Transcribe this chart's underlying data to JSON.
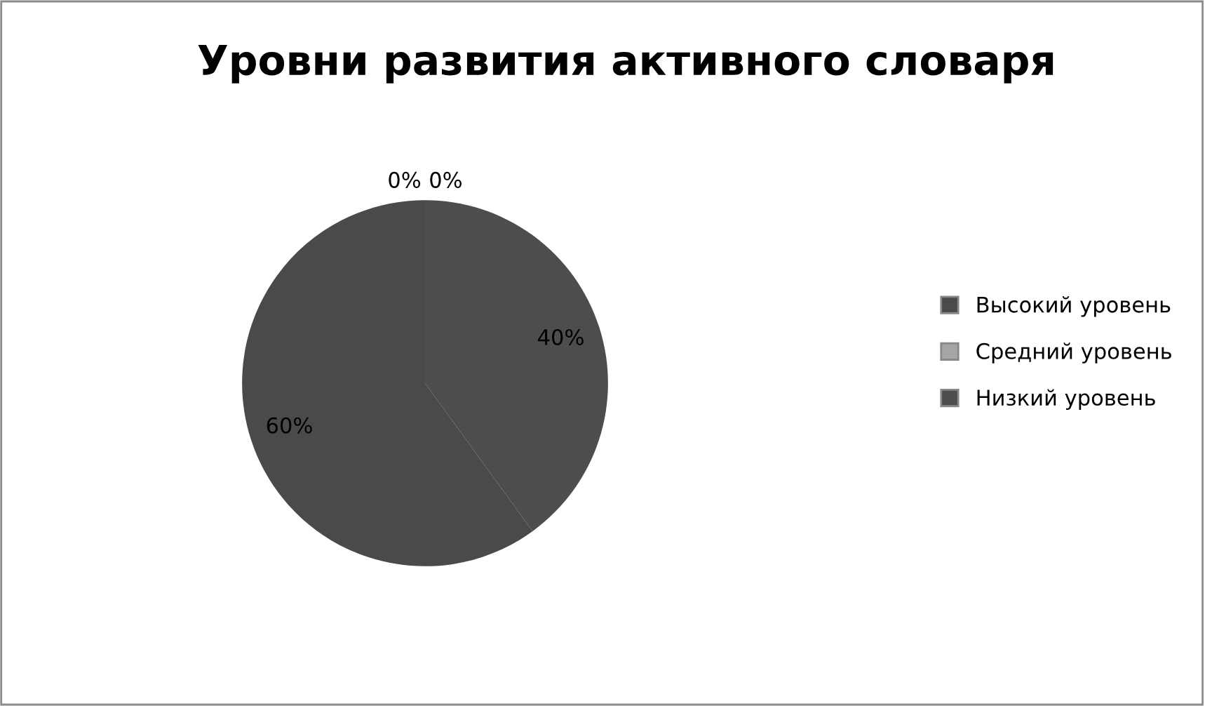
{
  "chart_data": {
    "type": "pie",
    "title": "Уровни развития активного словаря",
    "categories": [
      "Высокий уровень",
      "Средний уровень",
      "Низкий уровень",
      null
    ],
    "values": [
      0,
      0,
      40,
      60
    ],
    "colors": [
      "#4a4a4a",
      "#a6a6a6",
      "#4d4d4d",
      "#4a4a4a"
    ],
    "value_labels": [
      "0%",
      "0%",
      "40%",
      "60%"
    ],
    "legend": "right"
  }
}
